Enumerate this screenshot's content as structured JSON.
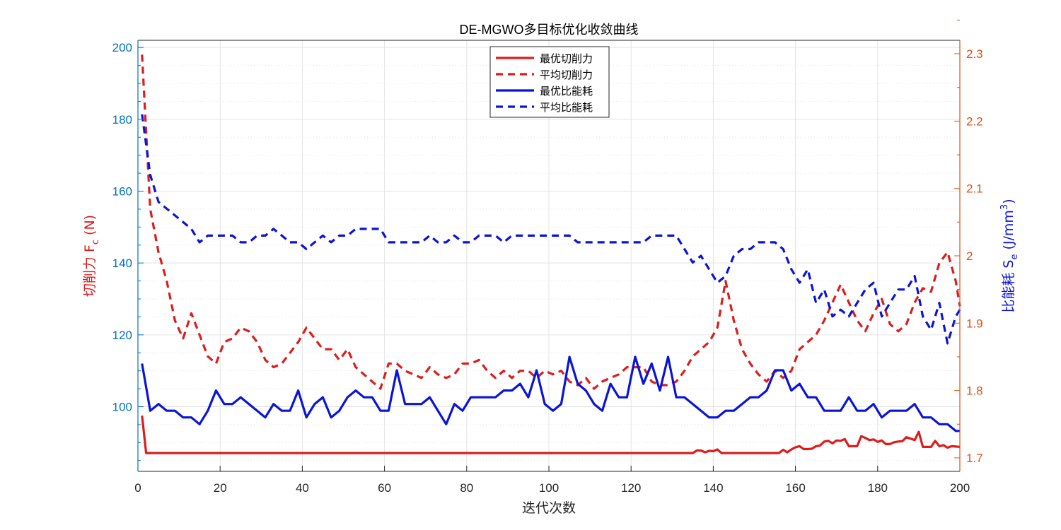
{
  "chart_data": {
    "type": "line",
    "title": "DE-MGWO多目标优化收敛曲线",
    "xlabel": "迭代次数",
    "ylabel_left": {
      "main": "切削力 F",
      "sub": "c",
      "unit": " (N)"
    },
    "ylabel_right": {
      "main": "比能耗 S",
      "sub": "e",
      "unit": " (J/mm",
      "sup": "3",
      "close": ")"
    },
    "xlim": [
      0,
      200
    ],
    "ylim_left": [
      82,
      202
    ],
    "ylim_right": [
      1.68,
      2.32
    ],
    "xticks": [
      0,
      20,
      40,
      60,
      80,
      100,
      120,
      140,
      160,
      180,
      200
    ],
    "xtick_labels": [
      "0",
      "20",
      "40",
      "60",
      "80",
      "100",
      "120",
      "140",
      "160",
      "180",
      "200"
    ],
    "yticks_left": [
      100,
      120,
      140,
      160,
      180,
      200
    ],
    "ytick_labels_left": [
      "100",
      "120",
      "140",
      "160",
      "180",
      "200"
    ],
    "yticks_right": [
      1.7,
      1.8,
      1.9,
      2.0,
      2.1,
      2.2,
      2.3
    ],
    "ytick_labels_right": [
      "1.7",
      "1.8",
      "1.9",
      "2",
      "2.1",
      "2.2",
      "2.3"
    ],
    "grid": true,
    "legend_position": "top-center",
    "colors": {
      "red": "#dd1c1c",
      "blue": "#0a14d8",
      "left_axis": "#0072bd",
      "right_axis": "#d95319",
      "axis_box": "#262626",
      "grid": "#e3e3e3"
    },
    "series": [
      {
        "name": "最优切削力",
        "axis": "left",
        "style": "solid",
        "color": "#dd1c1c",
        "x": [
          1,
          2,
          135,
          136,
          137,
          138,
          139,
          140,
          141,
          142,
          143,
          156,
          157,
          158,
          159,
          160,
          161,
          162,
          163,
          164,
          165,
          166,
          167,
          168,
          169,
          170,
          171,
          172,
          173,
          174,
          175,
          176,
          177,
          178,
          179,
          180,
          181,
          182,
          183,
          184,
          185,
          186,
          187,
          188,
          189,
          190,
          191,
          192,
          193,
          194,
          195,
          196,
          197,
          198,
          199,
          200
        ],
        "values": [
          97.5,
          87.1,
          87.1,
          87.8,
          87.8,
          87.3,
          87.7,
          87.6,
          88.1,
          87.1,
          87.1,
          87.1,
          88.0,
          87.3,
          88.1,
          88.7,
          89.0,
          88.2,
          88.2,
          88.3,
          89.0,
          89.2,
          90.3,
          90.5,
          89.8,
          90.6,
          90.5,
          91.0,
          89.0,
          89.0,
          89.0,
          91.8,
          91.3,
          90.7,
          90.9,
          90.2,
          90.6,
          89.6,
          89.6,
          90.1,
          90.3,
          90.4,
          91.5,
          91.1,
          90.7,
          93.0,
          88.8,
          88.8,
          88.8,
          90.5,
          89.0,
          89.3,
          88.6,
          89.0,
          88.9,
          88.8
        ]
      },
      {
        "name": "平均切削力",
        "axis": "left",
        "style": "dashed",
        "color": "#dd1c1c",
        "x": [
          1,
          3,
          5,
          7,
          9,
          11,
          13,
          15,
          17,
          19,
          21,
          23,
          25,
          27,
          29,
          31,
          33,
          35,
          37,
          39,
          41,
          43,
          45,
          47,
          49,
          51,
          53,
          55,
          57,
          59,
          61,
          63,
          65,
          67,
          69,
          71,
          73,
          75,
          77,
          79,
          81,
          83,
          85,
          87,
          89,
          91,
          93,
          95,
          97,
          99,
          101,
          103,
          105,
          107,
          109,
          111,
          113,
          115,
          117,
          119,
          121,
          123,
          125,
          127,
          129,
          131,
          133,
          135,
          137,
          139,
          141,
          143,
          145,
          147,
          149,
          151,
          153,
          155,
          157,
          159,
          161,
          163,
          165,
          167,
          169,
          171,
          173,
          175,
          177,
          179,
          181,
          183,
          185,
          187,
          189,
          191,
          193,
          195,
          197,
          199,
          200
        ],
        "values": [
          198,
          155,
          143,
          135,
          124,
          119,
          126,
          120,
          114,
          112,
          118,
          119,
          122,
          121,
          118,
          113,
          111,
          112,
          115,
          118,
          122,
          119,
          116,
          116,
          113,
          116,
          111,
          109,
          107,
          105,
          112,
          112,
          110,
          109,
          108,
          111,
          109,
          108,
          109,
          112,
          112,
          113,
          110,
          108,
          110,
          108,
          110,
          110,
          108,
          110,
          109,
          110,
          107,
          106,
          108,
          105,
          107,
          108,
          109,
          111,
          111,
          111,
          107,
          106,
          106,
          107,
          110,
          114,
          116,
          118,
          122,
          135,
          124,
          116,
          112,
          109,
          107,
          110,
          108,
          110,
          116,
          118,
          120,
          124,
          129,
          134,
          129,
          124,
          121,
          126,
          130,
          123,
          121,
          123,
          129,
          133,
          132,
          140,
          143,
          135,
          128
        ]
      },
      {
        "name": "最优比能耗",
        "axis": "right",
        "style": "solid",
        "color": "#0a14d8",
        "x": [
          1,
          3,
          5,
          7,
          9,
          11,
          13,
          15,
          17,
          19,
          21,
          23,
          25,
          27,
          29,
          31,
          33,
          35,
          37,
          39,
          41,
          43,
          45,
          47,
          49,
          51,
          53,
          55,
          57,
          59,
          61,
          63,
          65,
          67,
          69,
          71,
          73,
          75,
          77,
          79,
          81,
          83,
          85,
          87,
          89,
          91,
          93,
          95,
          97,
          99,
          101,
          103,
          105,
          107,
          109,
          111,
          113,
          115,
          117,
          119,
          121,
          123,
          125,
          127,
          129,
          131,
          133,
          135,
          137,
          139,
          141,
          143,
          145,
          147,
          149,
          151,
          153,
          155,
          157,
          159,
          161,
          163,
          165,
          167,
          169,
          171,
          173,
          175,
          177,
          179,
          181,
          183,
          185,
          187,
          189,
          191,
          193,
          195,
          197,
          199,
          200
        ],
        "values": [
          1.84,
          1.77,
          1.78,
          1.77,
          1.77,
          1.76,
          1.76,
          1.75,
          1.77,
          1.8,
          1.78,
          1.78,
          1.79,
          1.78,
          1.77,
          1.76,
          1.78,
          1.77,
          1.77,
          1.8,
          1.76,
          1.78,
          1.79,
          1.76,
          1.77,
          1.79,
          1.8,
          1.79,
          1.79,
          1.77,
          1.77,
          1.83,
          1.78,
          1.78,
          1.78,
          1.79,
          1.77,
          1.75,
          1.78,
          1.77,
          1.79,
          1.79,
          1.79,
          1.79,
          1.8,
          1.8,
          1.81,
          1.79,
          1.83,
          1.78,
          1.77,
          1.78,
          1.85,
          1.81,
          1.8,
          1.78,
          1.77,
          1.81,
          1.79,
          1.79,
          1.85,
          1.81,
          1.84,
          1.8,
          1.85,
          1.79,
          1.79,
          1.78,
          1.77,
          1.76,
          1.76,
          1.77,
          1.77,
          1.78,
          1.79,
          1.79,
          1.8,
          1.83,
          1.83,
          1.8,
          1.81,
          1.79,
          1.79,
          1.77,
          1.77,
          1.77,
          1.79,
          1.77,
          1.77,
          1.78,
          1.76,
          1.77,
          1.77,
          1.77,
          1.78,
          1.76,
          1.76,
          1.75,
          1.75,
          1.74,
          1.74
        ]
      },
      {
        "name": "平均比能耗",
        "axis": "right",
        "style": "dashed",
        "color": "#0a14d8",
        "x": [
          1,
          3,
          5,
          7,
          9,
          11,
          13,
          15,
          17,
          19,
          21,
          23,
          25,
          27,
          29,
          31,
          33,
          35,
          37,
          39,
          41,
          43,
          45,
          47,
          49,
          51,
          53,
          55,
          57,
          59,
          61,
          63,
          65,
          67,
          69,
          71,
          73,
          75,
          77,
          79,
          81,
          83,
          85,
          87,
          89,
          91,
          93,
          95,
          97,
          99,
          101,
          103,
          105,
          107,
          109,
          111,
          113,
          115,
          117,
          119,
          121,
          123,
          125,
          127,
          129,
          131,
          133,
          135,
          137,
          139,
          141,
          143,
          145,
          147,
          149,
          151,
          153,
          155,
          157,
          159,
          161,
          163,
          165,
          167,
          169,
          171,
          173,
          175,
          177,
          179,
          181,
          183,
          185,
          187,
          189,
          191,
          193,
          195,
          197,
          199,
          200
        ],
        "values": [
          2.21,
          2.12,
          2.08,
          2.07,
          2.06,
          2.05,
          2.04,
          2.02,
          2.03,
          2.03,
          2.03,
          2.03,
          2.02,
          2.02,
          2.03,
          2.03,
          2.04,
          2.03,
          2.02,
          2.02,
          2.01,
          2.02,
          2.03,
          2.02,
          2.03,
          2.03,
          2.04,
          2.04,
          2.04,
          2.04,
          2.02,
          2.02,
          2.02,
          2.02,
          2.02,
          2.03,
          2.02,
          2.02,
          2.03,
          2.02,
          2.02,
          2.03,
          2.03,
          2.03,
          2.02,
          2.03,
          2.03,
          2.03,
          2.03,
          2.03,
          2.03,
          2.03,
          2.03,
          2.02,
          2.02,
          2.02,
          2.02,
          2.02,
          2.02,
          2.02,
          2.02,
          2.02,
          2.03,
          2.03,
          2.03,
          2.03,
          2.01,
          1.99,
          2.0,
          1.98,
          1.96,
          1.97,
          2.0,
          2.01,
          2.01,
          2.02,
          2.02,
          2.02,
          2.01,
          1.98,
          1.96,
          1.98,
          1.93,
          1.95,
          1.91,
          1.92,
          1.91,
          1.93,
          1.95,
          1.96,
          1.91,
          1.93,
          1.95,
          1.95,
          1.97,
          1.91,
          1.89,
          1.93,
          1.87,
          1.91,
          1.92
        ]
      }
    ],
    "legend": [
      {
        "label": "最优切削力",
        "color": "#dd1c1c",
        "style": "solid"
      },
      {
        "label": "平均切削力",
        "color": "#dd1c1c",
        "style": "dashed"
      },
      {
        "label": "最优比能耗",
        "color": "#0a14d8",
        "style": "solid"
      },
      {
        "label": "平均比能耗",
        "color": "#0a14d8",
        "style": "dashed"
      }
    ]
  }
}
